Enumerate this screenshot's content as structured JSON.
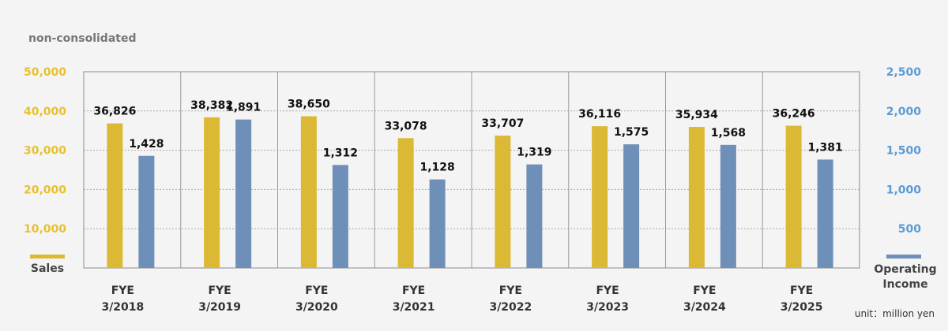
{
  "header": {
    "scope_label": "non-consolidated"
  },
  "chart_data": {
    "type": "bar",
    "categories": [
      [
        "FYE",
        "3/2018"
      ],
      [
        "FYE",
        "3/2019"
      ],
      [
        "FYE",
        "3/2020"
      ],
      [
        "FYE",
        "3/2021"
      ],
      [
        "FYE",
        "3/2022"
      ],
      [
        "FYE",
        "3/2023"
      ],
      [
        "FYE",
        "3/2024"
      ],
      [
        "FYE",
        "3/2025"
      ]
    ],
    "series": [
      {
        "name": "Sales",
        "axis": "left",
        "color": "#dbb935",
        "values": [
          36826,
          38382,
          38650,
          33078,
          33707,
          36116,
          35934,
          36246
        ],
        "labels": [
          "36,826",
          "38,382",
          "38,650",
          "33,078",
          "33,707",
          "36,116",
          "35,934",
          "36,246"
        ]
      },
      {
        "name": "Operating Income",
        "name_lines": [
          "Operating",
          "Income"
        ],
        "axis": "right",
        "color": "#6e8fb8",
        "values": [
          1428,
          1891,
          1312,
          1128,
          1319,
          1575,
          1568,
          1381
        ],
        "labels": [
          "1,428",
          "1,891",
          "1,312",
          "1,128",
          "1,319",
          "1,575",
          "1,568",
          "1,381"
        ]
      }
    ],
    "left_axis": {
      "range": [
        0,
        50000
      ],
      "ticks": [
        10000,
        20000,
        30000,
        40000,
        50000
      ],
      "tick_labels": [
        "10,000",
        "20,000",
        "30,000",
        "40,000",
        "50,000"
      ],
      "color": "#e8c12e"
    },
    "right_axis": {
      "range": [
        0,
        2500
      ],
      "ticks": [
        500,
        1000,
        1500,
        2000,
        2500
      ],
      "tick_labels": [
        "500",
        "1,000",
        "1,500",
        "2,000",
        "2,500"
      ],
      "color": "#5b9bd5"
    },
    "grid": true,
    "unit_label": "unit：million yen"
  }
}
